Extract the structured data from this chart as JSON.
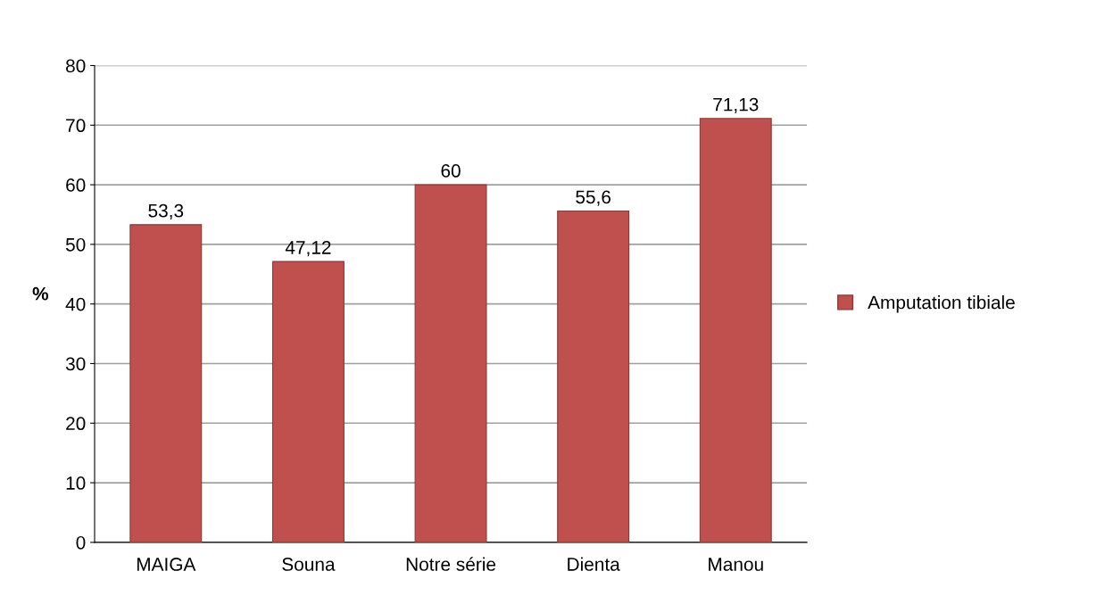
{
  "chart_data": {
    "type": "bar",
    "ylabel": "%",
    "categories": [
      "MAIGA",
      "Souna",
      "Notre série",
      "Dienta",
      "Manou"
    ],
    "series": [
      {
        "name": "Amputation tibiale",
        "color": "#c0504d",
        "values": [
          53.3,
          47.12,
          60,
          55.6,
          71.13
        ],
        "value_labels": [
          "53,3",
          "47,12",
          "60",
          "55,6",
          "71,13"
        ]
      }
    ],
    "ylim": [
      0,
      80
    ],
    "yticks": [
      0,
      10,
      20,
      30,
      40,
      50,
      60,
      70,
      80
    ],
    "grid": "y",
    "legend": "right"
  }
}
